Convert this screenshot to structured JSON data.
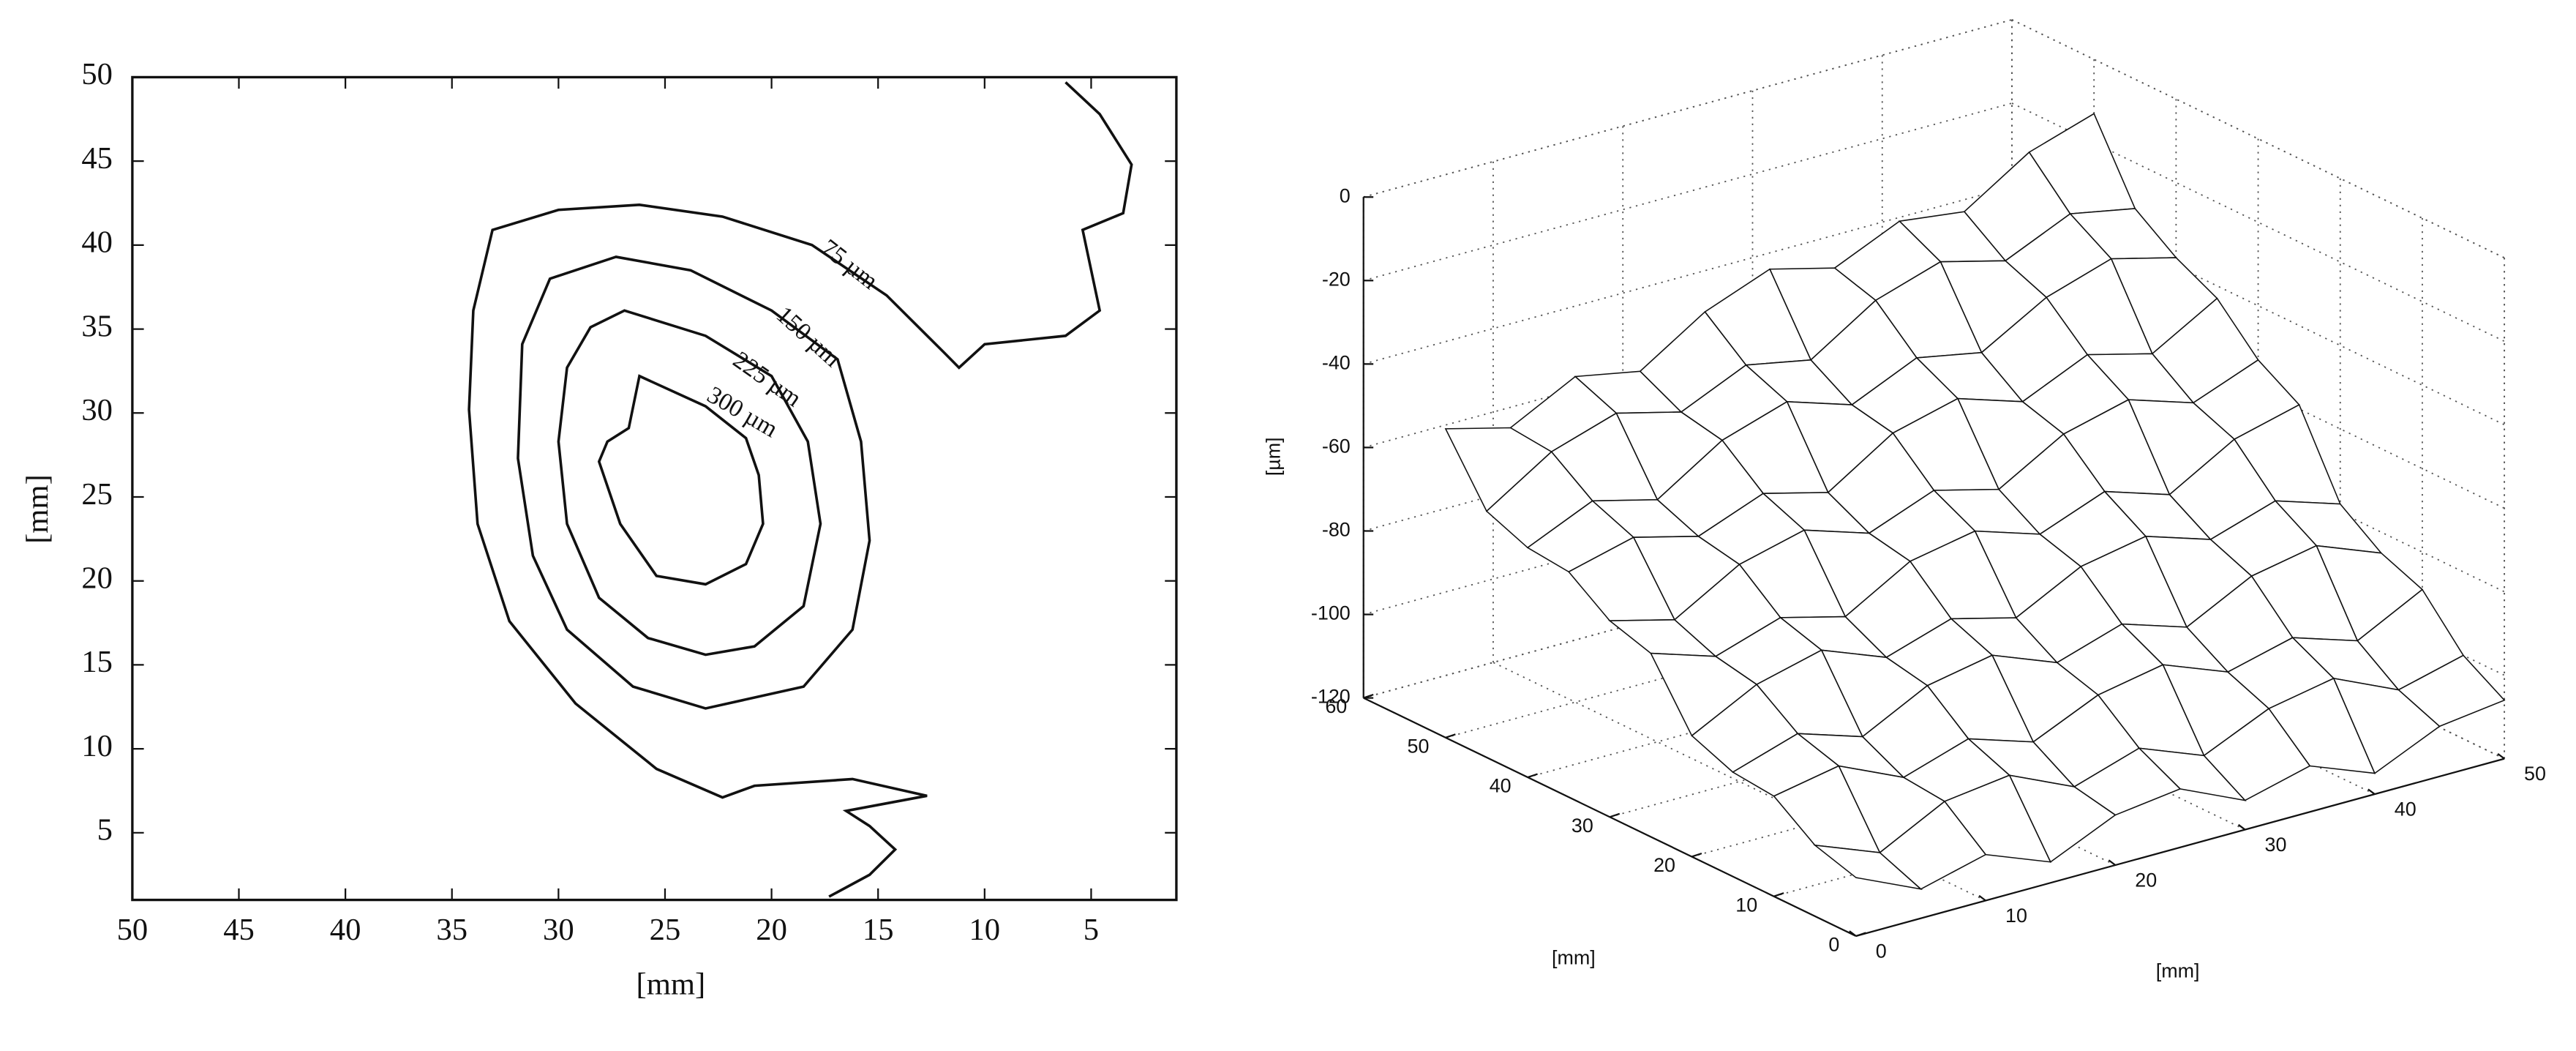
{
  "chart_data": [
    {
      "type": "contour",
      "xlabel": "[mm]",
      "ylabel": "[mm]",
      "color": "#111111",
      "xlim": [
        50,
        1
      ],
      "ylim": [
        1,
        50
      ],
      "xticks": [
        50,
        45,
        40,
        35,
        30,
        25,
        20,
        15,
        10,
        5
      ],
      "yticks": [
        5,
        10,
        15,
        20,
        25,
        30,
        35,
        40,
        45,
        50
      ],
      "series": [
        {
          "name": "75 µm",
          "closed": false,
          "x": [
            17.3,
            15.4,
            14.2,
            15.4,
            16.5,
            12.7,
            16.2,
            20.8,
            22.3,
            25.4,
            29.2,
            32.3,
            33.8,
            34.2,
            34.0,
            33.1,
            30.0,
            26.2,
            22.3,
            18.1,
            14.6,
            11.9,
            11.2,
            10.0,
            6.2,
            4.6,
            5.4,
            3.5,
            3.1,
            4.6,
            6.2
          ],
          "y": [
            1.2,
            2.5,
            4.0,
            5.4,
            6.3,
            7.2,
            8.2,
            7.8,
            7.1,
            8.8,
            12.7,
            17.6,
            23.4,
            30.2,
            36.1,
            40.9,
            42.1,
            42.4,
            41.7,
            40.0,
            37.0,
            33.6,
            32.7,
            34.1,
            34.6,
            36.1,
            40.9,
            41.9,
            44.8,
            47.8,
            49.7
          ]
        },
        {
          "name": "150 µm",
          "closed": true,
          "x": [
            27.3,
            23.8,
            20.0,
            16.9,
            15.8,
            15.4,
            16.2,
            18.5,
            23.1,
            26.5,
            29.6,
            31.2,
            31.9,
            31.7,
            30.4
          ],
          "y": [
            39.3,
            38.5,
            36.1,
            33.2,
            28.3,
            22.4,
            17.1,
            13.7,
            12.4,
            13.7,
            17.1,
            21.5,
            27.3,
            34.1,
            38.0
          ]
        },
        {
          "name": "225 µm",
          "closed": true,
          "x": [
            26.9,
            23.1,
            20.0,
            18.3,
            17.7,
            18.5,
            20.8,
            23.1,
            25.8,
            28.1,
            29.6,
            30.0,
            29.6,
            28.5
          ],
          "y": [
            36.1,
            34.6,
            32.2,
            28.3,
            23.4,
            18.5,
            16.1,
            15.6,
            16.6,
            19.0,
            23.4,
            28.3,
            32.7,
            35.1
          ]
        },
        {
          "name": "300 µm",
          "closed": true,
          "x": [
            26.2,
            23.1,
            21.2,
            20.6,
            20.4,
            21.2,
            23.1,
            25.4,
            27.1,
            28.1,
            27.7,
            26.7
          ],
          "y": [
            32.2,
            30.4,
            28.5,
            26.3,
            23.4,
            21.0,
            19.8,
            20.3,
            23.4,
            27.1,
            28.3,
            29.1
          ]
        }
      ]
    },
    {
      "type": "surface",
      "xlabel": "[mm]",
      "ylabel": "[mm]",
      "zlabel": "[µm]",
      "grid": true,
      "color": "#ffffff",
      "xlim": [
        0,
        50
      ],
      "ylim": [
        0,
        60
      ],
      "zlim": [
        -120,
        0
      ],
      "xticks": [
        0,
        10,
        20,
        30,
        40,
        50
      ],
      "yticks": [
        0,
        10,
        20,
        30,
        40,
        50,
        60
      ],
      "zticks": [
        0,
        -20,
        -40,
        -60,
        -80,
        -100,
        -120
      ],
      "x": [
        0,
        5,
        10,
        15,
        20,
        25,
        30,
        35,
        40,
        45,
        50
      ],
      "y": [
        0,
        5,
        10,
        15,
        20,
        25,
        30,
        35,
        40,
        45,
        50
      ],
      "z": [
        [
          -106,
          -113,
          -109,
          -115,
          -108,
          -106,
          -113,
          -109,
          -115,
          -108,
          -106
        ],
        [
          -103,
          -109,
          -101,
          -99,
          -106,
          -101,
          -107,
          -100,
          -97,
          -104,
          -100
        ],
        [
          -96,
          -93,
          -100,
          -95,
          -100,
          -93,
          -90,
          -96,
          -92,
          -97,
          -89
        ],
        [
          -95,
          -90,
          -95,
          -87,
          -84,
          -90,
          -85,
          -90,
          -82,
          -79,
          -85
        ],
        [
          -91,
          -83,
          -79,
          -85,
          -80,
          -84,
          -76,
          -73,
          -78,
          -73,
          -78
        ],
        [
          -76,
          -81,
          -76,
          -80,
          -71,
          -68,
          -73,
          -67,
          -72,
          -63,
          -59
        ],
        [
          -73,
          -77,
          -68,
          -64,
          -69,
          -63,
          -67,
          -58,
          -54,
          -59,
          -53
        ],
        [
          -66,
          -62,
          -66,
          -60,
          -64,
          -54,
          -50,
          -55,
          -48,
          -52,
          -43
        ],
        [
          -65,
          -58,
          -62,
          -52,
          -47,
          -52,
          -45,
          -48,
          -39,
          -34,
          -38
        ],
        [
          -61,
          -51,
          -46,
          -50,
          -43,
          -46,
          -36,
          -31,
          -35,
          -28,
          -31
        ],
        [
          -46,
          -50,
          -42,
          -45,
          -35,
          -29,
          -33,
          -26,
          -28,
          -18,
          -13
        ]
      ]
    }
  ]
}
